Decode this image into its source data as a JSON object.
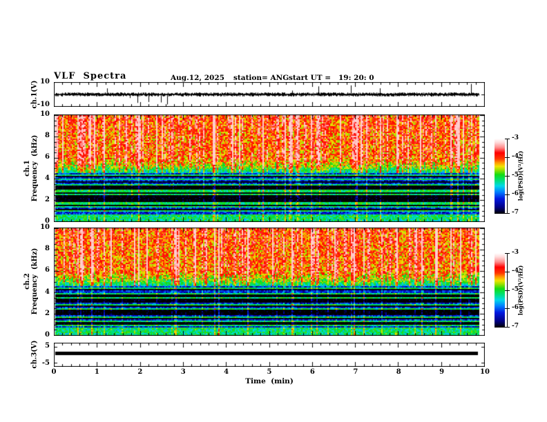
{
  "header": {
    "title": "VLF  Spectra",
    "date": "Aug.12, 2025",
    "station": "station= ANG",
    "start_ut": "start UT =   19: 20: 0"
  },
  "axes": {
    "time_label": "Time  (min)",
    "time_ticks": [
      "0",
      "1",
      "2",
      "3",
      "4",
      "5",
      "6",
      "7",
      "8",
      "9",
      "10"
    ],
    "wave_ylabel": "ch.1(V)",
    "wave_yticks": [
      "10",
      "-10"
    ],
    "spec1_channel": "ch.1",
    "spec2_channel": "ch.2",
    "freq_label": "Frequency  (kHz)",
    "spec_yticks": [
      "10",
      "8",
      "6",
      "4",
      "2",
      "0"
    ],
    "ch3_ylabel": "ch.3(V)",
    "ch3_yticks": [
      "5",
      "-5"
    ]
  },
  "colorbar": {
    "label": "log(PSD)(V²/Hz)",
    "ticks": [
      "-3",
      "-4",
      "-5",
      "-6",
      "-7"
    ],
    "min": -7,
    "max": -3,
    "gradient_stops": [
      [
        0.0,
        "#000000"
      ],
      [
        0.09,
        "#000088"
      ],
      [
        0.2,
        "#0018e0"
      ],
      [
        0.29,
        "#0080ff"
      ],
      [
        0.37,
        "#00d8e8"
      ],
      [
        0.45,
        "#00e070"
      ],
      [
        0.52,
        "#14dc14"
      ],
      [
        0.58,
        "#96e000"
      ],
      [
        0.63,
        "#f2e400"
      ],
      [
        0.68,
        "#ff9800"
      ],
      [
        0.73,
        "#ff3800"
      ],
      [
        0.81,
        "#ff0000"
      ],
      [
        0.88,
        "#ff8c8c"
      ],
      [
        0.95,
        "#ffdcdc"
      ],
      [
        1.0,
        "#ffffff"
      ]
    ]
  },
  "chart_data": [
    {
      "type": "line",
      "name": "ch1_waveform",
      "ylabel": "ch.1(V)",
      "ylim": [
        -10,
        10
      ],
      "xlim": [
        0,
        10
      ],
      "xlabel": "Time (min)",
      "description": "Dense noisy voltage trace centered on 0 V with ~±2 V envelope and intermittent impulsive spikes reaching about ±8 V; trace ends near 9.85 min."
    },
    {
      "type": "heatmap",
      "name": "ch1_spectrogram",
      "ylabel": "ch.1 Frequency (kHz)",
      "ylim": [
        0,
        10
      ],
      "xlim": [
        0,
        10
      ],
      "zlabel": "log(PSD)(V²/Hz)",
      "zlim": [
        -7,
        -3
      ],
      "features": {
        "above_5.5kHz": "strong broadband power, log PSD ≈ -4.5 to -3.5 (yellow/orange background with frequent red vertical burst streaks)",
        "4.5_to_5.5kHz": "transition band, log PSD ≈ -5.5 to -4.5 (green)",
        "0.5_to_4.5kHz": "weak power ≈ -6.5 to -6 (blue/navy) with darker horizontal bands near 1.1, 2.1, 2.7, 3.2 and 3.7 kHz (≈ -7) and thin enhanced horizontal lines (≈ -5) near 0.3, 0.9, 1.3, 1.7, 2.5, 2.9, 3.5, 4.0 and 4.4 kHz",
        "below_0.5kHz": "enhanced band edge ≈ -5.3 (green/cyan)",
        "vertical_streaks": "impulsive broadband bursts spanning all frequencies throughout the 10 min interval"
      }
    },
    {
      "type": "heatmap",
      "name": "ch2_spectrogram",
      "ylabel": "ch.2 Frequency (kHz)",
      "ylim": [
        0,
        10
      ],
      "xlim": [
        0,
        10
      ],
      "zlabel": "log(PSD)(V²/Hz)",
      "zlim": [
        -7,
        -3
      ],
      "features": "same character as ch.1 spectrogram: yellow/red above ~5 kHz, green transition, blue/navy below 4.5 kHz with dark horizontal bands, thin bright lines and broadband vertical streaks"
    },
    {
      "type": "line",
      "name": "ch3_waveform",
      "ylabel": "ch.3(V)",
      "ylim": [
        -7,
        7
      ],
      "xlim": [
        0,
        10
      ],
      "description": "Flat thick horizontal trace at ≈ +0.5 V for the entire interval (no signal)"
    }
  ],
  "render": {
    "seed_wave": 101,
    "seed_spec1": 7,
    "seed_spec2": 42,
    "dark_bands": [
      [
        1.02,
        1.2
      ],
      [
        1.5,
        1.62
      ],
      [
        1.85,
        2.42
      ],
      [
        2.62,
        2.8
      ],
      [
        3.02,
        3.4
      ],
      [
        3.62,
        3.82
      ],
      [
        4.18,
        4.32
      ]
    ],
    "bright_lines": [
      0.3,
      0.64,
      0.92,
      1.32,
      1.7,
      2.5,
      2.88,
      3.5,
      3.95,
      4.4
    ],
    "streaks": {
      "strong_prob": 0.1,
      "medium_prob": 0.22
    }
  }
}
